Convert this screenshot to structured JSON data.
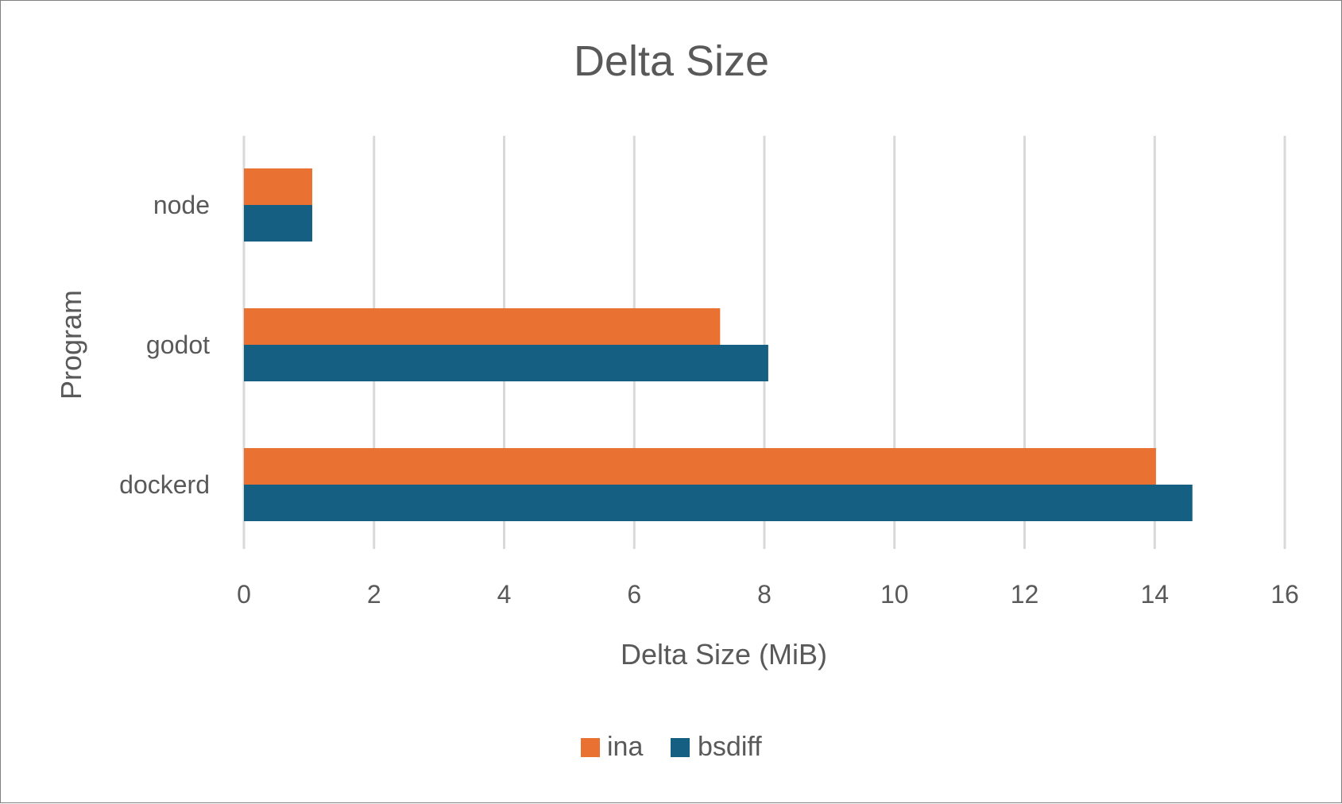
{
  "chart_data": {
    "type": "bar",
    "orientation": "horizontal",
    "title": "Delta Size",
    "xlabel": "Delta Size (MiB)",
    "ylabel": "Program",
    "categories": [
      "node",
      "godot",
      "dockerd"
    ],
    "series": [
      {
        "name": "ina",
        "values": [
          1.05,
          7.32,
          14.02
        ],
        "color": "#E97132"
      },
      {
        "name": "bsdiff",
        "values": [
          1.05,
          8.06,
          14.58
        ],
        "color": "#156082"
      }
    ],
    "xlim": [
      0,
      16
    ],
    "xticks": [
      "0",
      "2",
      "4",
      "6",
      "8",
      "10",
      "12",
      "14",
      "16"
    ],
    "grid": "vertical",
    "legend_position": "bottom"
  }
}
